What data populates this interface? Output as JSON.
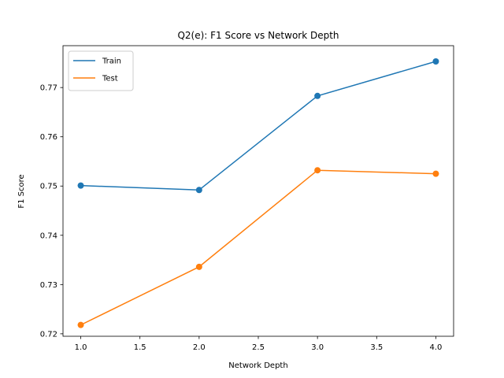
{
  "chart_data": {
    "type": "line",
    "title": "Q2(e): F1 Score vs Network Depth",
    "xlabel": "Network Depth",
    "ylabel": "F1 Score",
    "x": [
      1.0,
      2.0,
      3.0,
      4.0
    ],
    "xlim": [
      0.85,
      4.15
    ],
    "ylim": [
      0.7195,
      0.7785
    ],
    "xticks": [
      "1.0",
      "1.5",
      "2.0",
      "2.5",
      "3.0",
      "3.5",
      "4.0"
    ],
    "yticks": [
      "0.72",
      "0.73",
      "0.74",
      "0.75",
      "0.76",
      "0.77"
    ],
    "grid": false,
    "legend_position": "upper-left",
    "series": [
      {
        "name": "Train",
        "color": "#1f77b4",
        "values": [
          0.7501,
          0.7492,
          0.7683,
          0.7753
        ]
      },
      {
        "name": "Test",
        "color": "#ff7f0e",
        "values": [
          0.7218,
          0.7336,
          0.7532,
          0.7525
        ]
      }
    ]
  }
}
